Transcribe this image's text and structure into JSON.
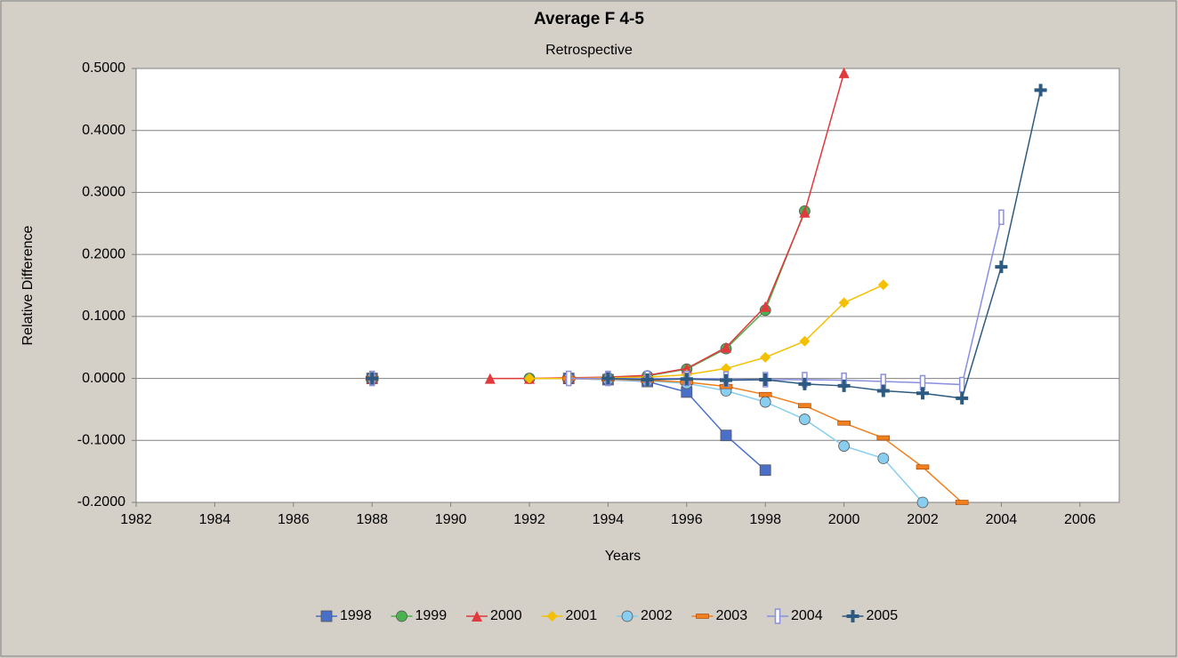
{
  "chart_data": {
    "type": "line",
    "title": "Average F 4-5",
    "subtitle": "Retrospective",
    "x_label": "Years",
    "y_label": "Relative Difference",
    "x": [
      1988,
      1989,
      1990,
      1991,
      1992,
      1993,
      1994,
      1995,
      1996,
      1997,
      1998,
      1999,
      2000,
      2001,
      2002,
      2003,
      2004,
      2005
    ],
    "series": [
      {
        "name": "1998",
        "color": "#4a6fc9",
        "marker": "square",
        "values": [
          0,
          null,
          null,
          null,
          null,
          0,
          -0.002,
          -0.005,
          -0.022,
          -0.092,
          -0.148,
          null,
          null,
          null,
          null,
          null,
          null,
          null
        ]
      },
      {
        "name": "1999",
        "color": "#4caf50",
        "marker": "circle",
        "values": [
          0,
          null,
          null,
          null,
          0,
          0,
          0.001,
          0.004,
          0.015,
          0.048,
          0.11,
          0.27,
          null,
          null,
          null,
          null,
          null,
          null
        ]
      },
      {
        "name": "2000",
        "color": "#e0393e",
        "marker": "triangle",
        "values": [
          0,
          null,
          null,
          0,
          0,
          0.001,
          0.002,
          0.005,
          0.016,
          0.05,
          0.116,
          0.268,
          0.493,
          null,
          null,
          null,
          null,
          null
        ]
      },
      {
        "name": "2001",
        "color": "#f5c000",
        "marker": "diamond",
        "values": [
          0,
          null,
          null,
          null,
          0,
          0,
          0.001,
          0.002,
          0.006,
          0.016,
          0.034,
          0.06,
          0.122,
          0.151,
          null,
          null,
          null,
          null
        ]
      },
      {
        "name": "2002",
        "color": "#87cef0",
        "marker": "circle",
        "values": [
          0,
          null,
          null,
          null,
          null,
          0,
          -0.002,
          -0.004,
          -0.008,
          -0.02,
          -0.038,
          -0.066,
          -0.109,
          -0.129,
          -0.2,
          null,
          null,
          null
        ]
      },
      {
        "name": "2003",
        "color": "#f07f1e",
        "marker": "dash",
        "values": [
          0,
          null,
          null,
          null,
          null,
          0,
          -0.001,
          -0.003,
          -0.006,
          -0.013,
          -0.026,
          -0.044,
          -0.072,
          -0.096,
          -0.143,
          -0.2,
          null,
          null
        ]
      },
      {
        "name": "2004",
        "color": "#8a8fe0",
        "marker": "bar",
        "values": [
          0,
          null,
          null,
          null,
          null,
          0,
          0,
          0,
          0,
          -0.001,
          -0.002,
          -0.002,
          -0.003,
          -0.005,
          -0.007,
          -0.01,
          0.26,
          null
        ]
      },
      {
        "name": "2005",
        "color": "#2d5a80",
        "marker": "plus",
        "values": [
          0,
          null,
          null,
          null,
          null,
          null,
          0,
          -0.002,
          -0.001,
          -0.003,
          -0.002,
          -0.009,
          -0.012,
          -0.02,
          -0.024,
          -0.032,
          0.18,
          0.465
        ]
      }
    ],
    "xlim": [
      1982,
      2007
    ],
    "xticks": [
      1982,
      1984,
      1986,
      1988,
      1990,
      1992,
      1994,
      1996,
      1998,
      2000,
      2002,
      2004,
      2006
    ],
    "ylim": [
      -0.2,
      0.5
    ],
    "yticks": [
      {
        "value": -0.2,
        "label": "-0.2000"
      },
      {
        "value": -0.1,
        "label": "-0.1000"
      },
      {
        "value": 0,
        "label": "0.0000"
      },
      {
        "value": 0.1,
        "label": "0.1000"
      },
      {
        "value": 0.2,
        "label": "0.2000"
      },
      {
        "value": 0.3,
        "label": "0.3000"
      },
      {
        "value": 0.4,
        "label": "0.4000"
      },
      {
        "value": 0.5,
        "label": "0.5000"
      }
    ],
    "grid": true,
    "legend": "bottom"
  }
}
